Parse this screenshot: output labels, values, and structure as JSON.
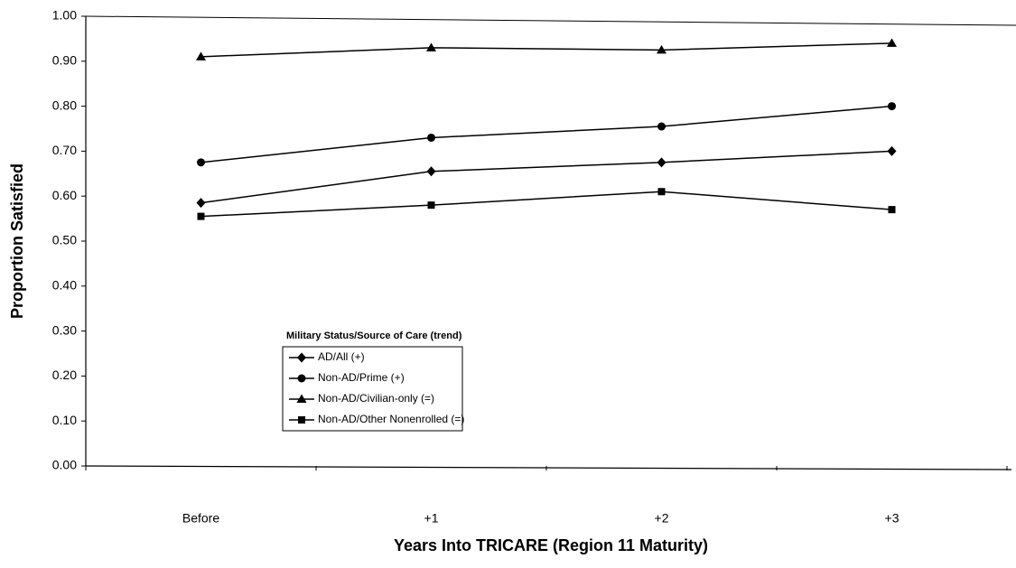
{
  "chart_data": {
    "type": "line",
    "x_label": "Years Into TRICARE (Region 11  Maturity)",
    "y_label": "Proportion Satisfied",
    "categories": [
      "Before",
      "+1",
      "+2",
      "+3"
    ],
    "series": [
      {
        "name": "AD/All (+)",
        "color": "#000000",
        "marker": "diamond",
        "values": [
          0.585,
          0.655,
          0.675,
          0.7
        ]
      },
      {
        "name": "Non-AD/Prime (+)",
        "color": "#000000",
        "marker": "circle",
        "values": [
          0.675,
          0.73,
          0.755,
          0.8
        ]
      },
      {
        "name": "Non-AD/Civilian-only (=)",
        "color": "#000000",
        "marker": "triangle",
        "values": [
          0.91,
          0.93,
          0.925,
          0.94
        ]
      },
      {
        "name": "Non-AD/Other Nonenrolled (=)",
        "color": "#000000",
        "marker": "square",
        "values": [
          0.555,
          0.58,
          0.61,
          0.57
        ]
      }
    ],
    "legend_title": "Military Status/Source of Care (trend)",
    "ylim": [
      0,
      1
    ],
    "yticks": [
      {
        "value": 0,
        "label": "0.00"
      },
      {
        "value": 0.1,
        "label": "0.10"
      },
      {
        "value": 0.2,
        "label": "0.20"
      },
      {
        "value": 0.3,
        "label": "0.30"
      },
      {
        "value": 0.4,
        "label": "0.40"
      },
      {
        "value": 0.5,
        "label": "0.50"
      },
      {
        "value": 0.6,
        "label": "0.60"
      },
      {
        "value": 0.7,
        "label": "0.70"
      },
      {
        "value": 0.8,
        "label": "0.80"
      },
      {
        "value": 0.9,
        "label": "0.90"
      },
      {
        "value": 1,
        "label": "1.00"
      }
    ],
    "grid": false
  }
}
